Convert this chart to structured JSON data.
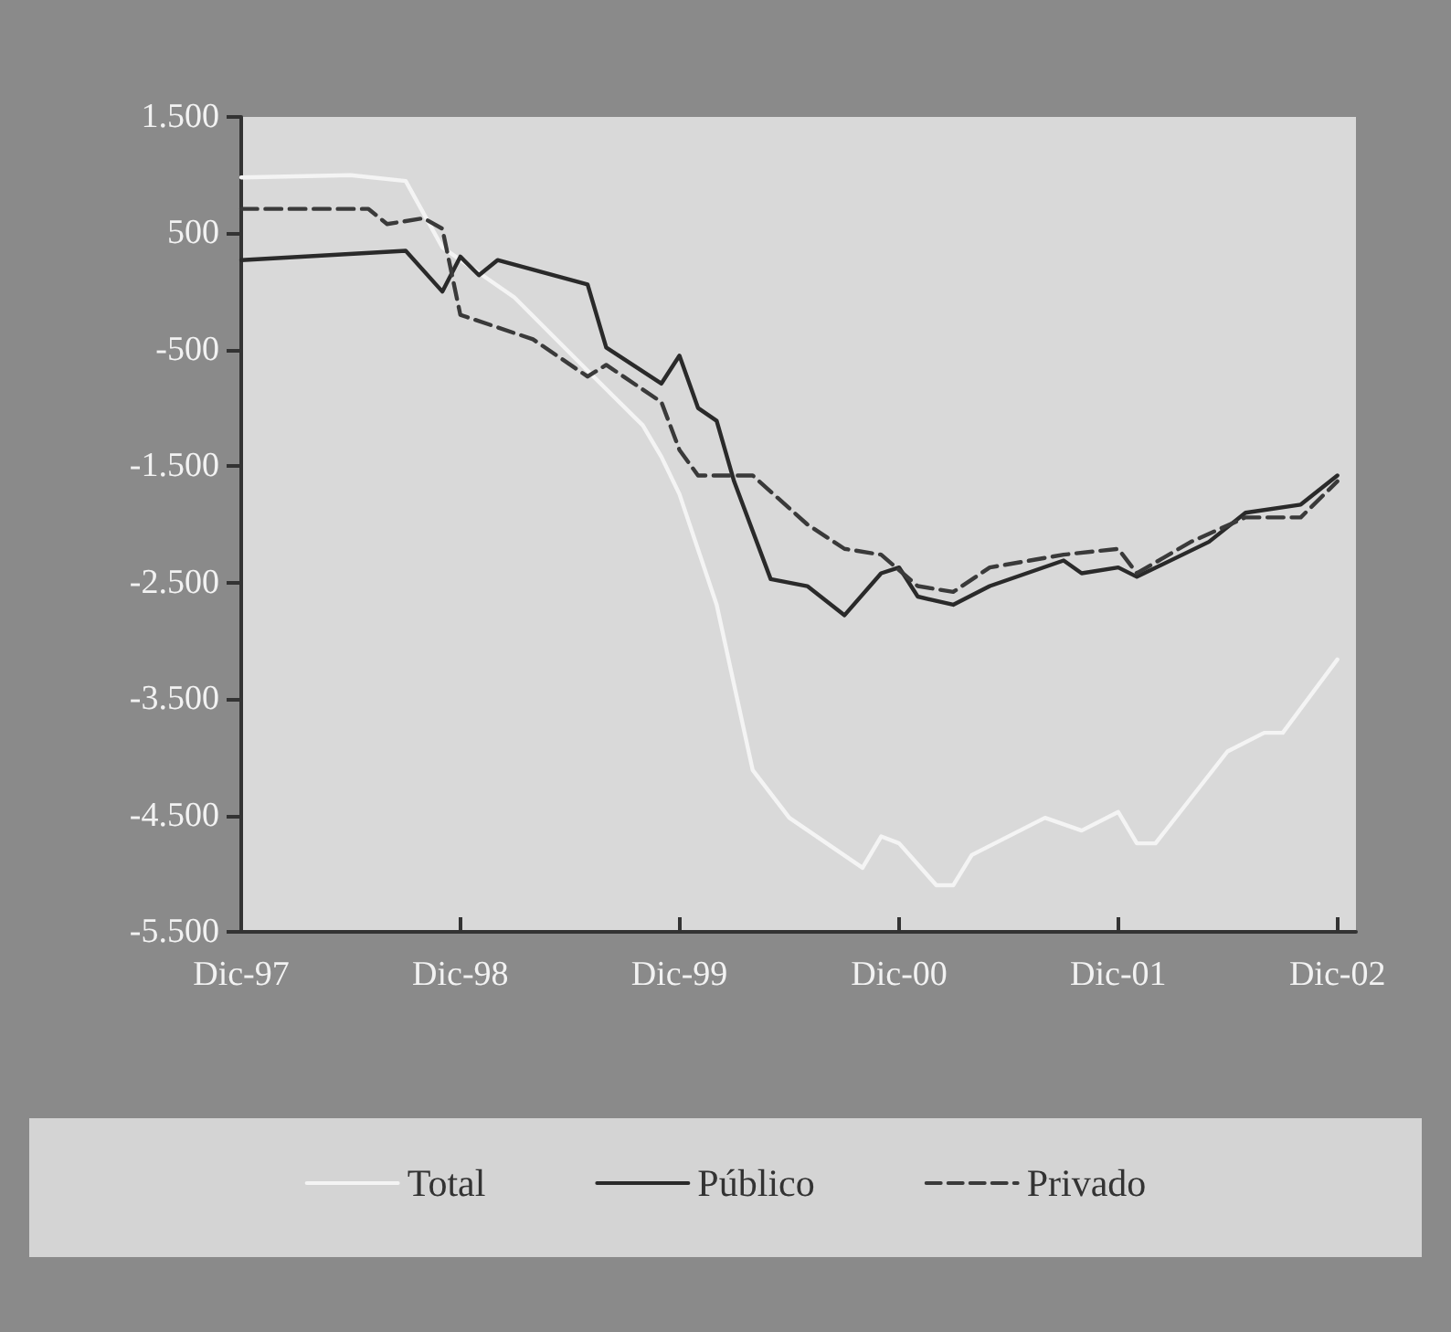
{
  "chart_data": {
    "type": "line",
    "xlim": [
      "1997-12",
      "2003-01"
    ],
    "xticks": [
      {
        "value": "1997-12",
        "label": "Dic-97"
      },
      {
        "value": "1998-12",
        "label": "Dic-98"
      },
      {
        "value": "1999-12",
        "label": "Dic-99"
      },
      {
        "value": "2000-12",
        "label": "Dic-00"
      },
      {
        "value": "2001-12",
        "label": "Dic-01"
      },
      {
        "value": "2002-12",
        "label": "Dic-02"
      }
    ],
    "ylim": [
      -5500,
      1500
    ],
    "yticks": [
      {
        "value": 1500,
        "label": "1.500"
      },
      500,
      -500,
      {
        "value": -1500,
        "label": "-1.500"
      },
      {
        "value": -2500,
        "label": "-2.500"
      },
      {
        "value": -3500,
        "label": "-3.500"
      },
      {
        "value": -4500,
        "label": "-4.500"
      },
      {
        "value": -5500,
        "label": "-5.500"
      }
    ],
    "grid": false,
    "legend": "bottom",
    "marker": "none",
    "series": [
      {
        "name": "Total",
        "color": "#f4f4f4",
        "line_style": "solid",
        "x": [
          "1997-12",
          "1998-06",
          "1998-09",
          "1998-11",
          "1999-03",
          "1999-07",
          "1999-10",
          "1999-11",
          "1999-12",
          "2000-02",
          "2000-04",
          "2000-06",
          "2000-10",
          "2000-11",
          "2000-12",
          "2001-02",
          "2001-03",
          "2001-04",
          "2001-08",
          "2001-10",
          "2001-12",
          "2002-01",
          "2002-02",
          "2002-06",
          "2002-08",
          "2002-09",
          "2002-12"
        ],
        "values": [
          980,
          1000,
          950,
          380,
          -50,
          -680,
          -1150,
          -1420,
          -1740,
          -2690,
          -4110,
          -4520,
          -4950,
          -4680,
          -4740,
          -5100,
          -5100,
          -4840,
          -4520,
          -4630,
          -4470,
          -4740,
          -4740,
          -3950,
          -3790,
          -3790,
          -3160
        ]
      },
      {
        "name": "Público",
        "color": "#2a2a2a",
        "line_style": "solid",
        "x": [
          "1997-12",
          "1998-09",
          "1998-11",
          "1998-12",
          "1999-01",
          "1999-02",
          "1999-07",
          "1999-08",
          "1999-11",
          "1999-12",
          "2000-01",
          "2000-02",
          "2000-03",
          "2000-05",
          "2000-07",
          "2000-09",
          "2000-11",
          "2000-12",
          "2001-01",
          "2001-03",
          "2001-05",
          "2001-09",
          "2001-10",
          "2001-12",
          "2002-01",
          "2002-05",
          "2002-07",
          "2002-10",
          "2002-12"
        ],
        "values": [
          270,
          350,
          0,
          300,
          140,
          270,
          60,
          -480,
          -790,
          -550,
          -1000,
          -1110,
          -1630,
          -2470,
          -2530,
          -2780,
          -2420,
          -2370,
          -2620,
          -2690,
          -2530,
          -2310,
          -2420,
          -2370,
          -2450,
          -2150,
          -1900,
          -1830,
          -1580
        ]
      },
      {
        "name": "Privado",
        "color": "#3a3a3a",
        "line_style": "dashed",
        "x": [
          "1997-12",
          "1998-07",
          "1998-08",
          "1998-10",
          "1998-11",
          "1998-12",
          "1999-04",
          "1999-07",
          "1999-08",
          "1999-11",
          "1999-12",
          "2000-01",
          "2000-04",
          "2000-07",
          "2000-09",
          "2000-11",
          "2001-01",
          "2001-03",
          "2001-05",
          "2001-09",
          "2001-12",
          "2002-01",
          "2002-04",
          "2002-07",
          "2002-10",
          "2002-12"
        ],
        "values": [
          710,
          710,
          580,
          630,
          540,
          -200,
          -410,
          -730,
          -630,
          -950,
          -1360,
          -1580,
          -1580,
          -2000,
          -2210,
          -2260,
          -2530,
          -2580,
          -2370,
          -2260,
          -2210,
          -2420,
          -2150,
          -1940,
          -1940,
          -1630
        ]
      }
    ]
  }
}
